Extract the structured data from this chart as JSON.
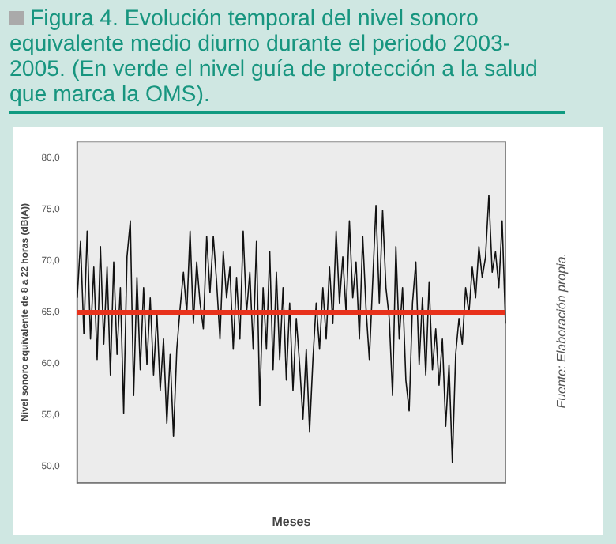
{
  "chart_data": {
    "type": "line",
    "title": "Figura 4. Evolución temporal del nivel sonoro equivalente medio diurno durante el periodo 2003-2005. (En verde el nivel guía de protección a la salud que marca la OMS).",
    "xlabel": "Meses",
    "ylabel": "Nivel sonoro equivalente de 8 a 22 horas (dB(A))",
    "annotations": [
      "Fuente: Elaboración propia."
    ],
    "categories": [
      null,
      null,
      null,
      null,
      null,
      null,
      null,
      null,
      null,
      null,
      null,
      null,
      null,
      null,
      null,
      null,
      null,
      null,
      null,
      null,
      null,
      null,
      null,
      null,
      null,
      null,
      null,
      null,
      null,
      null,
      null,
      null,
      null,
      null,
      null,
      null,
      null,
      null,
      null,
      null,
      null,
      null,
      null,
      null,
      null,
      null,
      null,
      null,
      null,
      null,
      null,
      null,
      null,
      null,
      null,
      null,
      null,
      null,
      null,
      null,
      null,
      null,
      null,
      null,
      null,
      null,
      null,
      null,
      null,
      null,
      null,
      null,
      null,
      null,
      null,
      null,
      null,
      null,
      null,
      null,
      null,
      null,
      null,
      null,
      null,
      null,
      null,
      null,
      null,
      null,
      null,
      null,
      null,
      null,
      null,
      null,
      null,
      null,
      null,
      null,
      null,
      null,
      null,
      null,
      null,
      null,
      null,
      null,
      null,
      null,
      null,
      null,
      null,
      null,
      null,
      null,
      null,
      null,
      null,
      null,
      null,
      null,
      null,
      null,
      null,
      null,
      null,
      null,
      null,
      null
    ],
    "series": [
      {
        "color": "#111111",
        "values": [
          66.4,
          71.9,
          62.9,
          72.9,
          62.4,
          69.4,
          60.4,
          71.4,
          61.9,
          69.4,
          58.9,
          69.9,
          60.9,
          67.4,
          55.2,
          70.4,
          73.9,
          56.9,
          68.4,
          59.4,
          67.4,
          59.9,
          66.4,
          58.9,
          64.9,
          57.4,
          62.4,
          54.2,
          60.9,
          52.9,
          61.4,
          65.4,
          68.9,
          64.9,
          72.9,
          63.9,
          69.9,
          65.9,
          63.4,
          72.4,
          66.9,
          72.4,
          67.9,
          62.4,
          70.9,
          66.4,
          69.4,
          61.4,
          68.4,
          62.4,
          72.9,
          64.9,
          68.9,
          61.4,
          71.9,
          55.9,
          67.4,
          61.4,
          70.9,
          59.4,
          68.9,
          60.4,
          67.4,
          58.4,
          65.9,
          57.4,
          64.4,
          59.9,
          54.6,
          61.4,
          53.4,
          60.4,
          65.9,
          61.4,
          67.4,
          62.4,
          69.4,
          63.9,
          72.9,
          65.9,
          70.4,
          64.9,
          73.9,
          66.4,
          69.9,
          62.4,
          72.4,
          65.4,
          60.4,
          67.9,
          75.4,
          65.9,
          74.9,
          67.4,
          64.4,
          56.9,
          71.4,
          62.4,
          67.4,
          58.4,
          55.4,
          65.9,
          69.9,
          59.9,
          66.4,
          58.9,
          67.9,
          59.4,
          63.4,
          57.9,
          62.4,
          53.9,
          59.9,
          50.4,
          60.9,
          64.4,
          61.9,
          67.4,
          64.9,
          69.4,
          66.4,
          71.4,
          68.4,
          70.4,
          76.4,
          68.9,
          70.9,
          67.4,
          73.9,
          63.9
        ]
      }
    ],
    "ylim": [
      48.4,
      81.6
    ],
    "yticks": [
      {
        "value": 50,
        "label": "50,0"
      },
      {
        "value": 55,
        "label": "55,0"
      },
      {
        "value": 60,
        "label": "60,0"
      },
      {
        "value": 65,
        "label": "65,0"
      },
      {
        "value": 70,
        "label": "70,0"
      },
      {
        "value": 75,
        "label": "75,0"
      },
      {
        "value": 80,
        "label": "80,0"
      }
    ],
    "ref_lines": [
      {
        "axis": "y",
        "value": 65,
        "color": "#e8321c"
      }
    ],
    "grid": false,
    "legend": false,
    "marker": "none",
    "line_style": "solid"
  }
}
